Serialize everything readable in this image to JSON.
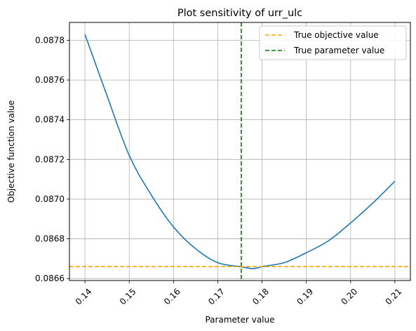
{
  "chart_data": {
    "type": "line",
    "title": "Plot sensitivity of urr_ulc",
    "xlabel": "Parameter value",
    "ylabel": "Objective function value",
    "xlim": [
      0.1365,
      0.2135
    ],
    "ylim": [
      0.08659,
      0.08789
    ],
    "grid": true,
    "x_ticks": [
      0.14,
      0.15,
      0.16,
      0.17,
      0.18,
      0.19,
      0.2,
      0.21
    ],
    "x_tick_labels": [
      "0.14",
      "0.15",
      "0.16",
      "0.17",
      "0.18",
      "0.19",
      "0.20",
      "0.21"
    ],
    "y_ticks": [
      0.0866,
      0.0868,
      0.087,
      0.0872,
      0.0874,
      0.0876,
      0.0878
    ],
    "y_tick_labels": [
      "0.0866",
      "0.0868",
      "0.0870",
      "0.0872",
      "0.0874",
      "0.0876",
      "0.0878"
    ],
    "series": [
      {
        "type": "curve",
        "color": "#1f77b4",
        "x": [
          0.14,
          0.145,
          0.15,
          0.155,
          0.16,
          0.165,
          0.17,
          0.175,
          0.178,
          0.18,
          0.185,
          0.19,
          0.195,
          0.2,
          0.205,
          0.21
        ],
        "y": [
          0.08783,
          0.08752,
          0.08722,
          0.08702,
          0.08686,
          0.08675,
          0.08668,
          0.08666,
          0.08665,
          0.08666,
          0.08668,
          0.08673,
          0.08679,
          0.08688,
          0.08698,
          0.08709
        ]
      }
    ],
    "hlines": [
      {
        "name": "True objective value",
        "y": 0.08666,
        "color": "#ffa500",
        "style": "dashed"
      }
    ],
    "vlines": [
      {
        "name": "True parameter value",
        "x": 0.1753,
        "color": "#008000",
        "style": "dashed"
      }
    ],
    "legend": {
      "placement": "top-right",
      "entries": [
        {
          "label": "True objective value",
          "color": "#ffa500",
          "style": "dashed"
        },
        {
          "label": "True parameter value",
          "color": "#008000",
          "style": "dashed"
        }
      ]
    }
  }
}
